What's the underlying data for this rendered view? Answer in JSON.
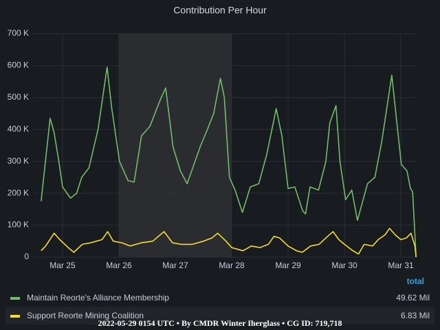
{
  "chart_data": {
    "type": "line",
    "title": "Contribution Per Hour",
    "xlim": [
      24.476,
      31.268
    ],
    "xticks": [
      {
        "value": 25,
        "label": "Mar 25"
      },
      {
        "value": 26,
        "label": "Mar 26"
      },
      {
        "value": 27,
        "label": "Mar 27"
      },
      {
        "value": 28,
        "label": "Mar 28"
      },
      {
        "value": 29,
        "label": "Mar 29"
      },
      {
        "value": 30,
        "label": "Mar 30"
      },
      {
        "value": 31,
        "label": "Mar 31"
      }
    ],
    "ylim": [
      0,
      700000
    ],
    "yticks": [
      0,
      {
        "value": 100000,
        "label": "100 K"
      },
      {
        "value": 200000,
        "label": "200 K"
      },
      {
        "value": 300000,
        "label": "300 K"
      },
      {
        "value": 400000,
        "label": "400 K"
      },
      {
        "value": 500000,
        "label": "500 K"
      },
      {
        "value": 600000,
        "label": "600 K"
      },
      {
        "value": 700000,
        "label": "700 K"
      }
    ],
    "grid": true,
    "highlight": [
      26,
      28
    ],
    "legend_column": "total",
    "series": [
      {
        "name": "Maintain Reorte's Alliance Membership",
        "color": "#73bf69",
        "total": {
          "value": 49620000,
          "label": "49.62 Mil"
        },
        "x": [
          24.62,
          24.78,
          24.85,
          24.93,
          25.0,
          25.14,
          25.25,
          25.34,
          25.47,
          25.63,
          25.79,
          25.87,
          26.01,
          26.16,
          26.27,
          26.4,
          26.55,
          26.66,
          26.75,
          26.83,
          26.96,
          27.09,
          27.21,
          27.31,
          27.45,
          27.57,
          27.68,
          27.8,
          27.87,
          27.96,
          28.06,
          28.19,
          28.33,
          28.48,
          28.62,
          28.79,
          28.89,
          29.0,
          29.12,
          29.26,
          29.31,
          29.39,
          29.54,
          29.67,
          29.74,
          29.85,
          29.92,
          30.02,
          30.13,
          30.23,
          30.41,
          30.54,
          30.66,
          30.84,
          30.93,
          31.01,
          31.11,
          31.17,
          31.21,
          31.27
        ],
        "values": [
          175000,
          435000,
          390000,
          305000,
          220000,
          185000,
          200000,
          250000,
          280000,
          400000,
          595000,
          470000,
          300000,
          240000,
          235000,
          380000,
          410000,
          460000,
          500000,
          530000,
          345000,
          270000,
          230000,
          280000,
          350000,
          400000,
          450000,
          560000,
          500000,
          250000,
          210000,
          140000,
          220000,
          230000,
          320000,
          465000,
          380000,
          215000,
          220000,
          145000,
          135000,
          220000,
          210000,
          300000,
          420000,
          475000,
          300000,
          180000,
          210000,
          115000,
          230000,
          250000,
          360000,
          570000,
          420000,
          290000,
          270000,
          215000,
          205000,
          0
        ]
      },
      {
        "name": "Support Reorte Mining Coalition",
        "color": "#fade2a",
        "total": {
          "value": 6830000,
          "label": "6.83 Mil"
        },
        "x": [
          24.62,
          24.7,
          24.85,
          24.95,
          25.1,
          25.2,
          25.35,
          25.5,
          25.7,
          25.8,
          25.9,
          26.05,
          26.2,
          26.4,
          26.6,
          26.8,
          26.95,
          27.1,
          27.3,
          27.5,
          27.65,
          27.75,
          27.9,
          28.0,
          28.2,
          28.35,
          28.5,
          28.65,
          28.75,
          28.85,
          29.0,
          29.15,
          29.25,
          29.4,
          29.55,
          29.7,
          29.8,
          29.9,
          30.0,
          30.15,
          30.25,
          30.35,
          30.5,
          30.6,
          30.72,
          30.8,
          30.9,
          31.0,
          31.1,
          31.18,
          31.25,
          31.27
        ],
        "values": [
          20000,
          35000,
          75000,
          55000,
          30000,
          15000,
          40000,
          45000,
          55000,
          80000,
          50000,
          45000,
          35000,
          45000,
          50000,
          80000,
          45000,
          40000,
          40000,
          50000,
          60000,
          75000,
          50000,
          30000,
          20000,
          35000,
          30000,
          40000,
          65000,
          60000,
          35000,
          20000,
          15000,
          35000,
          40000,
          65000,
          80000,
          55000,
          40000,
          20000,
          10000,
          40000,
          35000,
          55000,
          70000,
          90000,
          70000,
          55000,
          60000,
          75000,
          35000,
          0
        ]
      }
    ],
    "footer": "2022-05-29 0154 UTC • By CMDR Winter Iherglass • CG ID: 719,718"
  }
}
